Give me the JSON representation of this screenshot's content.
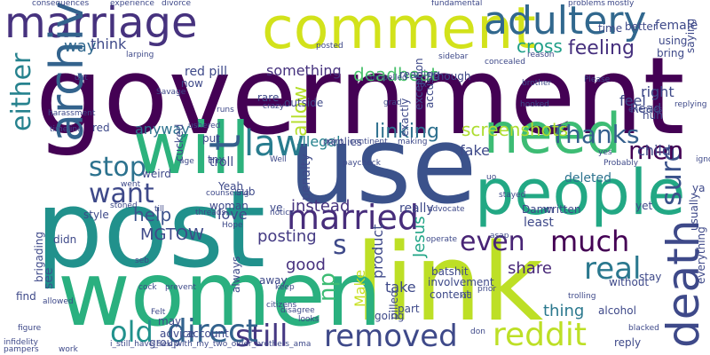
{
  "cloud": {
    "words": [
      {
        "text": "government",
        "color": "#440154"
      },
      {
        "text": "post",
        "color": "#21918c"
      },
      {
        "text": "use",
        "color": "#3b528b"
      },
      {
        "text": "link",
        "color": "#bddf26"
      },
      {
        "text": "women",
        "color": "#2ab07f"
      },
      {
        "text": "comment",
        "color": "#d2e21b"
      },
      {
        "text": "marriage",
        "color": "#46327e"
      },
      {
        "text": "people",
        "color": "#22a884"
      },
      {
        "text": "will",
        "color": "#2db27d"
      },
      {
        "text": "archive",
        "color": "#33638d"
      },
      {
        "text": "adultery",
        "color": "#31688e"
      },
      {
        "text": "need",
        "color": "#3dbc74"
      },
      {
        "text": "death",
        "color": "#3e4989"
      },
      {
        "text": "sure",
        "color": "#3b528b"
      },
      {
        "text": "married",
        "color": "#472d7b"
      },
      {
        "text": "still",
        "color": "#453882"
      },
      {
        "text": "removed",
        "color": "#3e4989"
      },
      {
        "text": "direct",
        "color": "#33638d"
      },
      {
        "text": "reddit",
        "color": "#bddf26"
      },
      {
        "text": "old",
        "color": "#21918c"
      },
      {
        "text": "even",
        "color": "#482475"
      },
      {
        "text": "much",
        "color": "#440154"
      },
      {
        "text": "real",
        "color": "#2a788e"
      },
      {
        "text": "law",
        "color": "#287c8e"
      },
      {
        "text": "men",
        "color": "#440154"
      },
      {
        "text": "Thanks",
        "color": "#355f8d"
      },
      {
        "text": "stop",
        "color": "#2c728e"
      },
      {
        "text": "want",
        "color": "#3e4989"
      },
      {
        "text": "either",
        "color": "#26828e"
      },
      {
        "text": "np",
        "color": "#3dbc74"
      },
      {
        "text": "t",
        "color": "#355f8d"
      },
      {
        "text": "s",
        "color": "#3e4989"
      },
      {
        "text": "instead",
        "color": "#46327e"
      },
      {
        "text": "good",
        "color": "#46307e"
      },
      {
        "text": "share",
        "color": "#482878"
      },
      {
        "text": "linking",
        "color": "#2d708e"
      },
      {
        "text": "screenshots",
        "color": "#addc30"
      },
      {
        "text": "feeling",
        "color": "#46307e"
      },
      {
        "text": "cross",
        "color": "#1f9f88"
      },
      {
        "text": "deadbeat",
        "color": "#4ac16d"
      },
      {
        "text": "way",
        "color": "#31688e"
      },
      {
        "text": "think",
        "color": "#3e4989"
      },
      {
        "text": "something",
        "color": "#46327e"
      },
      {
        "text": "allow",
        "color": "#b5de2b"
      },
      {
        "text": "illegal",
        "color": "#26828e"
      },
      {
        "text": "anyway",
        "color": "#2c728e"
      },
      {
        "text": "help",
        "color": "#3b528b"
      },
      {
        "text": "MGTOW",
        "color": "#3e4989"
      },
      {
        "text": "love",
        "color": "#3e4989"
      },
      {
        "text": "posting",
        "color": "#443a83"
      },
      {
        "text": "thing",
        "color": "#2a788e"
      },
      {
        "text": "Make",
        "color": "#c8e020"
      },
      {
        "text": "product",
        "color": "#3e4989"
      },
      {
        "text": "Jesus",
        "color": "#20a486"
      },
      {
        "text": "take",
        "color": "#3e4989"
      },
      {
        "text": "see",
        "color": "#39568c"
      },
      {
        "text": "fake",
        "color": "#3e4989"
      },
      {
        "text": "deleted",
        "color": "#2c728e"
      },
      {
        "text": "right",
        "color": "#3e4989"
      },
      {
        "text": "feel",
        "color": "#3e4989"
      },
      {
        "text": "child",
        "color": "#3e4989"
      },
      {
        "text": "Read",
        "color": "#3e4989"
      },
      {
        "text": "red pill",
        "color": "#3e4989"
      },
      {
        "text": "penalty",
        "color": "#3e4989"
      },
      {
        "text": "least",
        "color": "#3e4989"
      },
      {
        "text": "really",
        "color": "#3e4989"
      },
      {
        "text": "Damn",
        "color": "#3e4989"
      },
      {
        "text": "written",
        "color": "#3e4989"
      },
      {
        "text": "batshit",
        "color": "#3e4989"
      },
      {
        "text": "exactly",
        "color": "#3e4989"
      },
      {
        "text": "rare",
        "color": "#3e4989"
      },
      {
        "text": "replies",
        "color": "#3e4989"
      },
      {
        "text": "troll",
        "color": "#3e4989"
      },
      {
        "text": "female",
        "color": "#3e4989"
      },
      {
        "text": "better",
        "color": "#3e4989"
      },
      {
        "text": "time",
        "color": "#3e4989"
      },
      {
        "text": "using",
        "color": "#3e4989"
      },
      {
        "text": "bring",
        "color": "#3e4989"
      },
      {
        "text": "though",
        "color": "#3e4989"
      },
      {
        "text": "reading",
        "color": "#3e4989"
      },
      {
        "text": "now",
        "color": "#3e4989"
      },
      {
        "text": "red",
        "color": "#3e4989"
      },
      {
        "text": "cucked",
        "color": "#3e4989"
      },
      {
        "text": "weird",
        "color": "#3e4989"
      },
      {
        "text": "put",
        "color": "#3e4989"
      },
      {
        "text": "tnx",
        "color": "#3e4989"
      },
      {
        "text": "Yeah",
        "color": "#3e4989"
      },
      {
        "text": "ve",
        "color": "#3e4989"
      },
      {
        "text": "woman",
        "color": "#3e4989"
      },
      {
        "text": "style",
        "color": "#3e4989"
      },
      {
        "text": "sub",
        "color": "#3e4989"
      },
      {
        "text": "usually",
        "color": "#3e4989"
      },
      {
        "text": "stay",
        "color": "#3e4989"
      },
      {
        "text": "without",
        "color": "#3e4989"
      },
      {
        "text": "yet",
        "color": "#3e4989"
      },
      {
        "text": "involvement",
        "color": "#3e4989"
      },
      {
        "text": "content",
        "color": "#3e4989"
      },
      {
        "text": "alcohol",
        "color": "#3e4989"
      },
      {
        "text": "part",
        "color": "#3e4989"
      },
      {
        "text": "going",
        "color": "#3e4989"
      },
      {
        "text": "pilled",
        "color": "#3e4989"
      },
      {
        "text": "away",
        "color": "#3e4989"
      },
      {
        "text": "always",
        "color": "#3e4989"
      },
      {
        "text": "may",
        "color": "#3e4989"
      },
      {
        "text": "advice",
        "color": "#3e4989"
      },
      {
        "text": "group",
        "color": "#3e4989"
      },
      {
        "text": "find",
        "color": "#3e4989"
      },
      {
        "text": "account",
        "color": "#3e4989"
      },
      {
        "text": "reply",
        "color": "#3e4989"
      },
      {
        "text": "brigading",
        "color": "#3e4989"
      },
      {
        "text": "didn",
        "color": "#3e4989"
      },
      {
        "text": "everything",
        "color": "#3e4989"
      },
      {
        "text": "huh",
        "color": "#3e4989"
      },
      {
        "text": "exception",
        "color": "#3e4989"
      },
      {
        "text": "accuse",
        "color": "#3e4989"
      },
      {
        "text": "outside",
        "color": "#3e4989"
      },
      {
        "text": "saying",
        "color": "#3e4989"
      },
      {
        "text": "ya",
        "color": "#3e4989"
      },
      {
        "text": "i_still_have_sex_with_my_two_older_brothers_ama",
        "color": "#3e4989"
      },
      {
        "text": "consequences",
        "color": "#3e4989"
      },
      {
        "text": "experience",
        "color": "#3e4989"
      },
      {
        "text": "divorce",
        "color": "#3e4989"
      },
      {
        "text": "fundamental",
        "color": "#3e4989"
      },
      {
        "text": "problems",
        "color": "#3e4989"
      },
      {
        "text": "mostly",
        "color": "#3e4989"
      },
      {
        "text": "Savage",
        "color": "#3e4989"
      },
      {
        "text": "timeline",
        "color": "#3e4989"
      },
      {
        "text": "harassment",
        "color": "#3e4989"
      },
      {
        "text": "ushered",
        "color": "#3e4989"
      },
      {
        "text": "counseling",
        "color": "#3e4989"
      },
      {
        "text": "stoned",
        "color": "#3e4989"
      },
      {
        "text": "threads",
        "color": "#3e4989"
      },
      {
        "text": "citizens",
        "color": "#3e4989"
      },
      {
        "text": "disagree",
        "color": "#3e4989"
      },
      {
        "text": "advocate",
        "color": "#3e4989"
      },
      {
        "text": "paycheck",
        "color": "#3e4989"
      },
      {
        "text": "Probably",
        "color": "#3e4989"
      },
      {
        "text": "trolling",
        "color": "#3e4989"
      },
      {
        "text": "blacked",
        "color": "#3e4989"
      },
      {
        "text": "infidelity",
        "color": "#3e4989"
      },
      {
        "text": "pampers",
        "color": "#3e4989"
      },
      {
        "text": "work",
        "color": "#3e4989"
      },
      {
        "text": "allowed",
        "color": "#3e4989"
      },
      {
        "text": "Felt",
        "color": "#3e4989"
      },
      {
        "text": "looks",
        "color": "#3e4989"
      },
      {
        "text": "prior",
        "color": "#3e4989"
      },
      {
        "text": "kid",
        "color": "#3e4989"
      },
      {
        "text": "don",
        "color": "#3e4989"
      },
      {
        "text": "replying",
        "color": "#3e4989"
      },
      {
        "text": "enemies",
        "color": "#3e4989"
      },
      {
        "text": "concealed",
        "color": "#3e4989"
      },
      {
        "text": "compelled",
        "color": "#3e4989"
      },
      {
        "text": "sidebar",
        "color": "#3e4989"
      },
      {
        "text": "hooked",
        "color": "#3e4989"
      },
      {
        "text": "continent",
        "color": "#3e4989"
      },
      {
        "text": "making",
        "color": "#3e4989"
      },
      {
        "text": "point",
        "color": "#3e4989"
      },
      {
        "text": "Please",
        "color": "#3e4989"
      },
      {
        "text": "reason",
        "color": "#3e4989"
      },
      {
        "text": "larping",
        "color": "#3e4989"
      },
      {
        "text": "stayed",
        "color": "#3e4989"
      },
      {
        "text": "brother",
        "color": "#3e4989"
      },
      {
        "text": "crazy",
        "color": "#3e4989"
      },
      {
        "text": "runs",
        "color": "#3e4989"
      },
      {
        "text": "grad",
        "color": "#3e4989"
      },
      {
        "text": "fix",
        "color": "#3e4989"
      },
      {
        "text": "Well",
        "color": "#3e4989"
      },
      {
        "text": "notice",
        "color": "#3e4989"
      },
      {
        "text": "Hope",
        "color": "#3e4989"
      },
      {
        "text": "age",
        "color": "#3e4989"
      },
      {
        "text": "went",
        "color": "#3e4989"
      },
      {
        "text": "prevent",
        "color": "#3e4989"
      },
      {
        "text": "keep",
        "color": "#3e4989"
      },
      {
        "text": "cock",
        "color": "#3e4989"
      },
      {
        "text": "till",
        "color": "#3e4989"
      },
      {
        "text": "asap",
        "color": "#3e4989"
      },
      {
        "text": "yes",
        "color": "#3e4989"
      },
      {
        "text": "dat",
        "color": "#3e4989"
      },
      {
        "text": "posted",
        "color": "#3e4989"
      },
      {
        "text": "uo",
        "color": "#3e4989"
      },
      {
        "text": "operate",
        "color": "#3e4989"
      },
      {
        "text": "ignored",
        "color": "#3e4989"
      },
      {
        "text": "figure",
        "color": "#3e4989"
      },
      {
        "text": "seb",
        "color": "#3e4989"
      }
    ]
  }
}
